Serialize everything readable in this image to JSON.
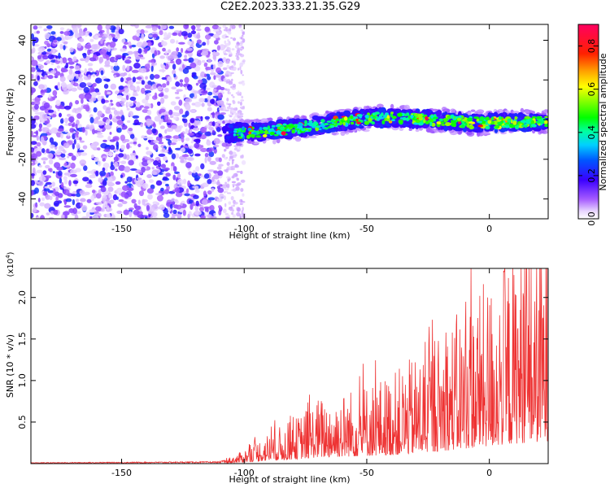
{
  "title": "C2E2.2023.333.21.35.G29",
  "chart_data": [
    {
      "type": "heatmap",
      "title": "C2E2.2023.333.21.35.G29",
      "xlabel": "Height of straight line (km)",
      "ylabel": "Frequency (Hz)",
      "xlim": [
        -187,
        24
      ],
      "ylim": [
        -50,
        48
      ],
      "xticks": [
        -150,
        -100,
        -50,
        0
      ],
      "yticks": [
        -40,
        -20,
        0,
        20,
        40
      ],
      "colorbar": {
        "label": "Normalized spectral amplitude",
        "range": [
          0.0,
          0.9
        ],
        "ticks": [
          0.0,
          0.2,
          0.4,
          0.6,
          0.8
        ],
        "colormap": "rainbow"
      },
      "regions": [
        {
          "name": "noise",
          "x_range": [
            -187,
            -108
          ],
          "freq_range": [
            -50,
            48
          ],
          "amplitude": 0.05
        },
        {
          "name": "signal",
          "x_range": [
            -108,
            24
          ],
          "freq_start": -7,
          "freq_end": -1,
          "freq_peak": 4,
          "peak_x": -45,
          "bandwidth_hz": 4,
          "amplitude_range": [
            0.1,
            0.9
          ]
        }
      ]
    },
    {
      "type": "line",
      "xlabel": "Height of straight line (km)",
      "ylabel": "SNR (10 * v/v)",
      "scale_label": "(x10",
      "scale_exp": "4",
      "scale_close": ")",
      "xlim": [
        -187,
        24
      ],
      "ylim": [
        0,
        2.35
      ],
      "xticks": [
        -150,
        -100,
        -50,
        0
      ],
      "yticks": [
        0.5,
        1.0,
        1.5,
        2.0
      ],
      "ytick_labels": [
        "0.5",
        "1.0",
        "1.5",
        "2.0"
      ],
      "line_color": "#ee3333",
      "envelope": [
        [
          -187,
          0.01
        ],
        [
          -110,
          0.02
        ],
        [
          -103,
          0.07
        ],
        [
          -90,
          0.24
        ],
        [
          -80,
          0.33
        ],
        [
          -70,
          0.5
        ],
        [
          -60,
          0.55
        ],
        [
          -50,
          0.62
        ],
        [
          -40,
          0.68
        ],
        [
          -30,
          0.82
        ],
        [
          -20,
          1.0
        ],
        [
          -10,
          1.2
        ],
        [
          0,
          1.4
        ],
        [
          10,
          1.6
        ],
        [
          24,
          1.8
        ]
      ]
    }
  ]
}
